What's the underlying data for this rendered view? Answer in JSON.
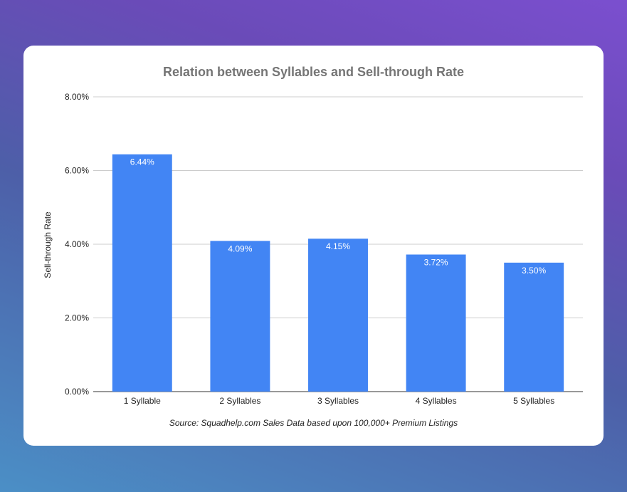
{
  "chart_data": {
    "type": "bar",
    "title": "Relation between Syllables and Sell-through Rate",
    "ylabel": "Sell-through Rate",
    "xlabel": "",
    "categories": [
      "1 Syllable",
      "2 Syllables",
      "3 Syllables",
      "4 Syllables",
      "5 Syllables"
    ],
    "values": [
      6.44,
      4.09,
      4.15,
      3.72,
      3.5
    ],
    "data_labels": [
      "6.44%",
      "4.09%",
      "4.15%",
      "3.72%",
      "3.50%"
    ],
    "ylim": [
      0,
      8
    ],
    "yticks": [
      0,
      2,
      4,
      6,
      8
    ],
    "ytick_labels": [
      "0.00%",
      "2.00%",
      "4.00%",
      "6.00%",
      "8.00%"
    ],
    "grid": true,
    "legend": "none",
    "bar_color": "#4285f4",
    "source": "Source: Squadhelp.com Sales Data based upon 100,000+ Premium Listings"
  }
}
